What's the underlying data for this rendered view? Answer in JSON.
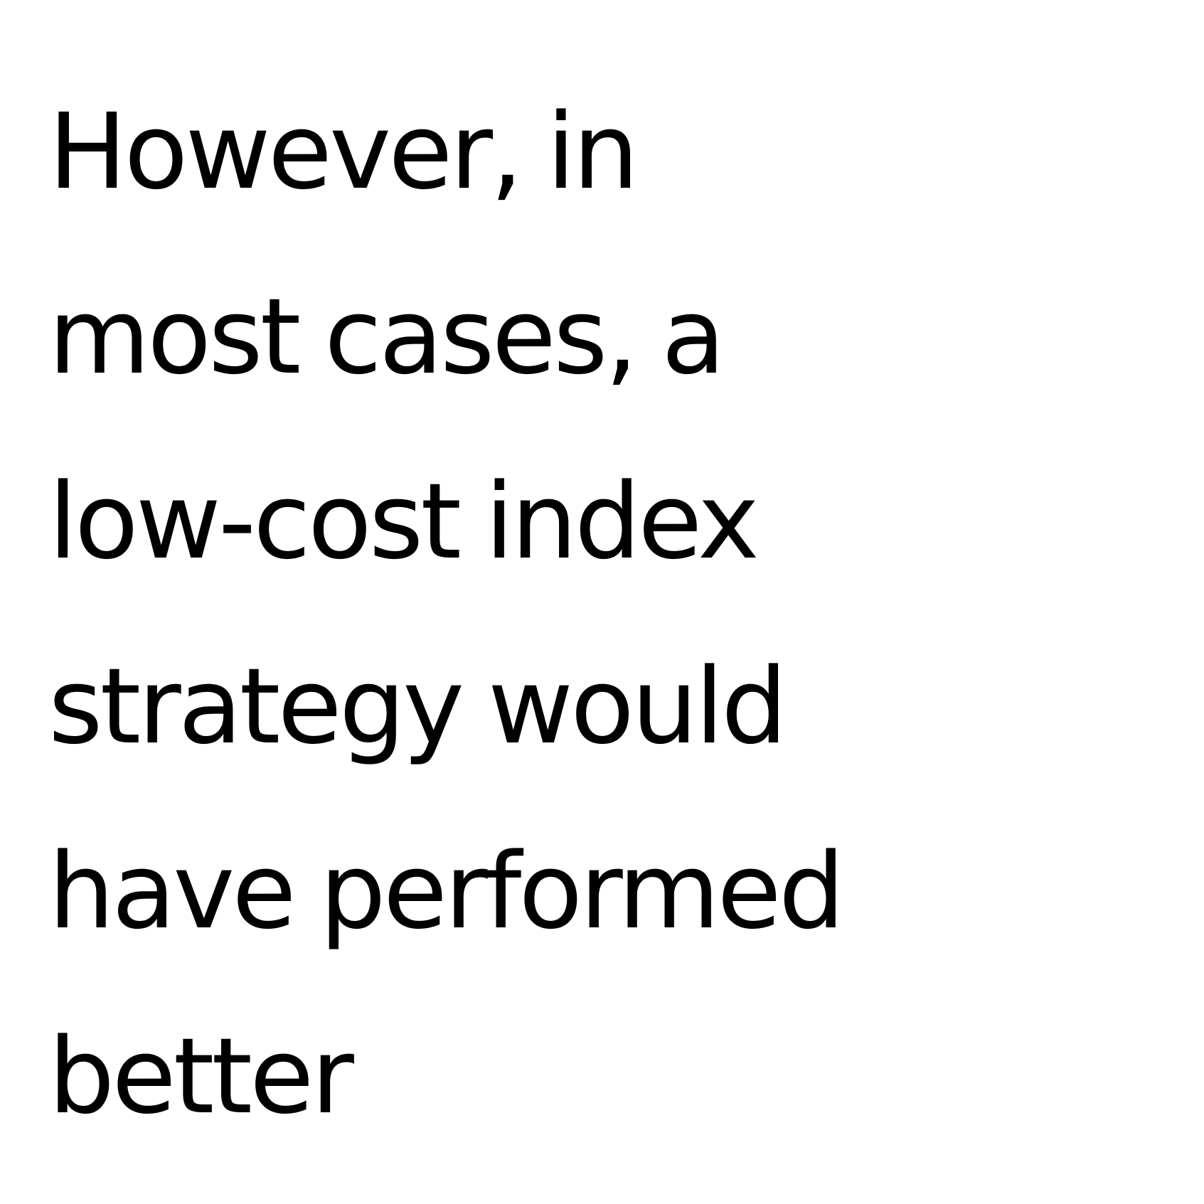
{
  "slide": {
    "lines": [
      "However, in",
      "most cases, a",
      "low-cost index",
      "strategy would",
      "have performed",
      "better"
    ]
  }
}
